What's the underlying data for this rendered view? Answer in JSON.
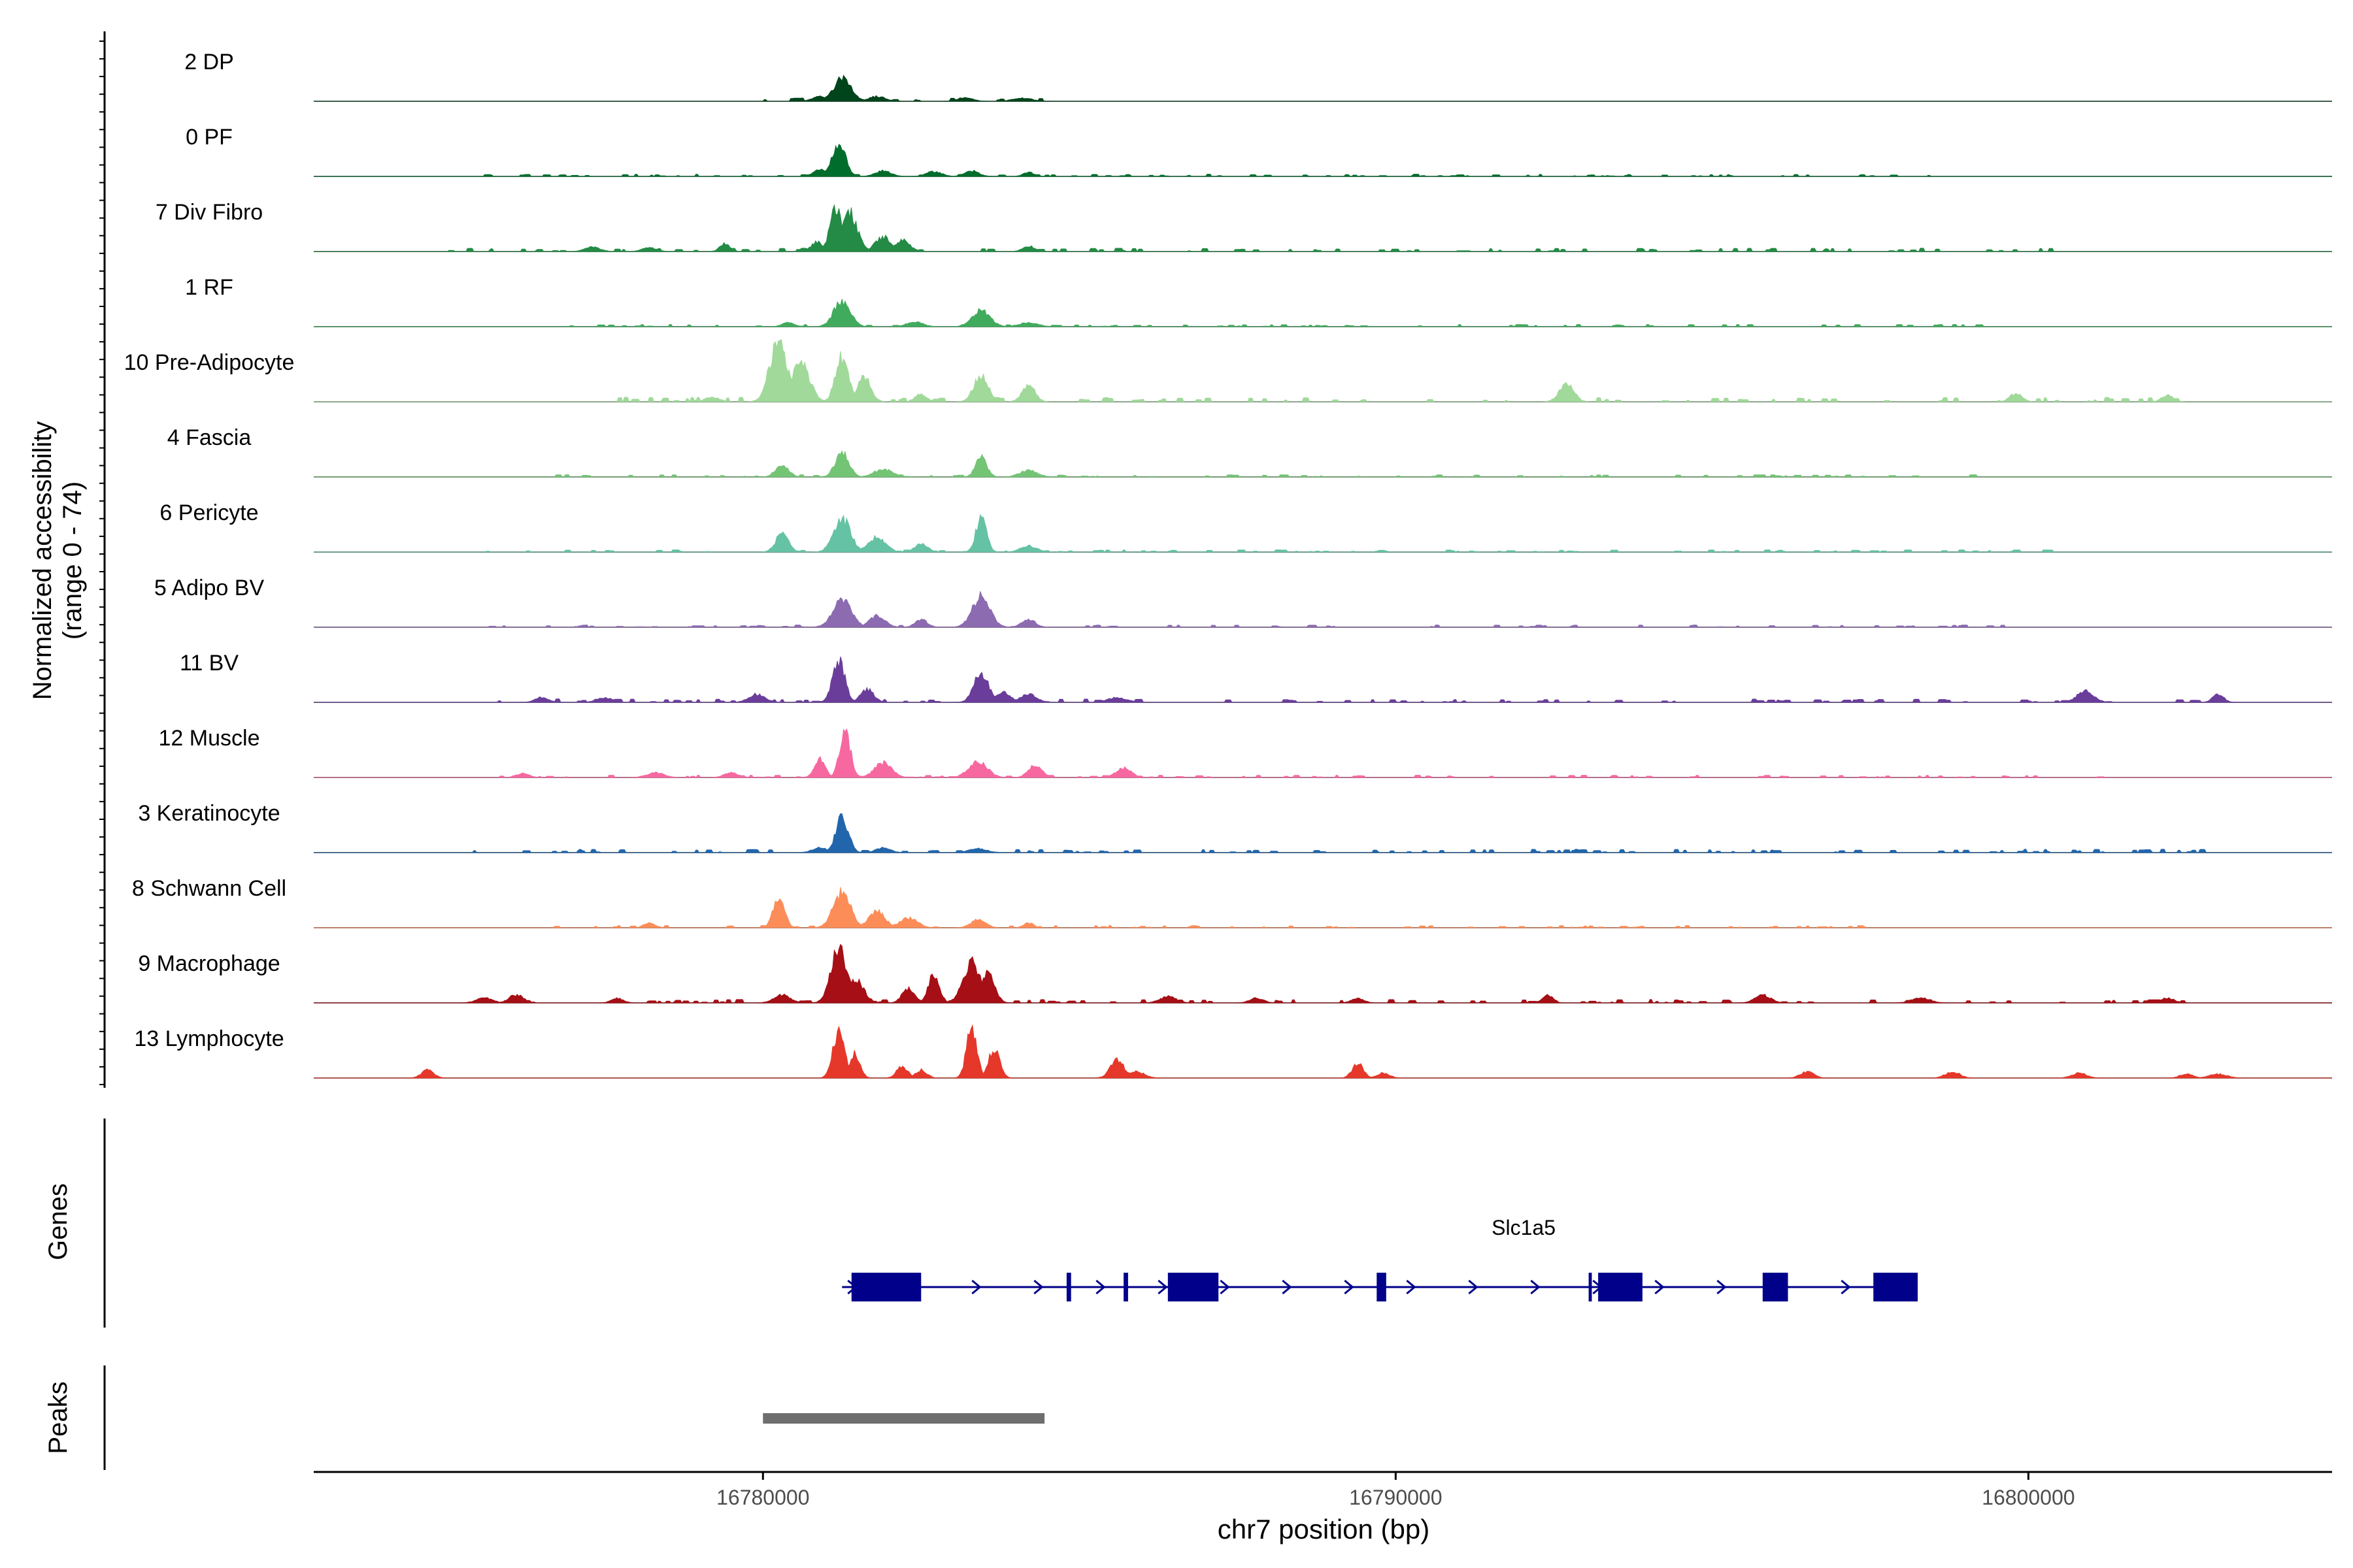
{
  "chart_data": {
    "type": "area",
    "title": "",
    "ylabel_line1": "Normalized accessibility",
    "ylabel_line2": "(range 0 - 74)",
    "xlabel": "chr7 position (bp)",
    "xlim": [
      16772900,
      16804800
    ],
    "ylim": [
      0,
      74
    ],
    "xticks": [
      16780000,
      16790000,
      16800000
    ],
    "xtick_labels": [
      "16780000",
      "16790000",
      "16800000"
    ],
    "tracks": [
      {
        "name": "2 DP",
        "color": "#00441b",
        "peaks": [
          [
            16781260,
            28
          ],
          [
            16780900,
            6
          ],
          [
            16781800,
            6
          ],
          [
            16783200,
            5
          ],
          [
            16784100,
            4
          ]
        ],
        "noise": [
          16779900,
          16784400,
          3
        ]
      },
      {
        "name": "0 PF",
        "color": "#006d2c",
        "peaks": [
          [
            16781200,
            42
          ],
          [
            16780900,
            8
          ],
          [
            16781900,
            7
          ],
          [
            16782700,
            6
          ],
          [
            16783300,
            7
          ],
          [
            16784200,
            5
          ]
        ],
        "noise": [
          16775300,
          16798600,
          2
        ]
      },
      {
        "name": "7 Div Fibro",
        "color": "#238b45",
        "peaks": [
          [
            16781150,
            55
          ],
          [
            16781350,
            50
          ],
          [
            16780850,
            12
          ],
          [
            16781900,
            18
          ],
          [
            16782200,
            14
          ],
          [
            16779400,
            10
          ],
          [
            16777300,
            6
          ],
          [
            16778200,
            5
          ],
          [
            16784200,
            7
          ]
        ],
        "noise": [
          16775000,
          16800500,
          3
        ]
      },
      {
        "name": "1 RF",
        "color": "#41ab5d",
        "peaks": [
          [
            16781250,
            32
          ],
          [
            16783450,
            20
          ],
          [
            16780400,
            5
          ],
          [
            16782400,
            6
          ],
          [
            16784200,
            5
          ]
        ],
        "noise": [
          16776000,
          16799600,
          2
        ]
      },
      {
        "name": "10 Pre-Adipocyte",
        "color": "#a1d99b",
        "peaks": [
          [
            16780250,
            75
          ],
          [
            16780600,
            48
          ],
          [
            16781250,
            55
          ],
          [
            16781600,
            30
          ],
          [
            16783450,
            32
          ],
          [
            16784200,
            22
          ],
          [
            16779200,
            6
          ],
          [
            16782500,
            10
          ],
          [
            16792700,
            22
          ],
          [
            16799800,
            10
          ],
          [
            16802200,
            8
          ]
        ],
        "noise": [
          16777600,
          16802500,
          4
        ]
      },
      {
        "name": "4 Fascia",
        "color": "#74c476",
        "peaks": [
          [
            16780300,
            16
          ],
          [
            16781250,
            30
          ],
          [
            16781900,
            10
          ],
          [
            16783450,
            24
          ],
          [
            16784200,
            8
          ]
        ],
        "noise": [
          16776500,
          16799300,
          2
        ]
      },
      {
        "name": "6 Pericyte",
        "color": "#66c2a4",
        "peaks": [
          [
            16780300,
            22
          ],
          [
            16781250,
            42
          ],
          [
            16781800,
            18
          ],
          [
            16783450,
            44
          ],
          [
            16782500,
            10
          ],
          [
            16784200,
            8
          ]
        ],
        "noise": [
          16775500,
          16800500,
          2
        ]
      },
      {
        "name": "5 Adipo BV",
        "color": "#8c6bb1",
        "peaks": [
          [
            16781250,
            34
          ],
          [
            16781800,
            14
          ],
          [
            16783450,
            38
          ],
          [
            16782500,
            10
          ],
          [
            16784200,
            10
          ]
        ],
        "noise": [
          16775600,
          16800800,
          2
        ]
      },
      {
        "name": "11 BV",
        "color": "#6a3d9a",
        "peaks": [
          [
            16781200,
            52
          ],
          [
            16781650,
            16
          ],
          [
            16783450,
            36
          ],
          [
            16783800,
            12
          ],
          [
            16784200,
            10
          ],
          [
            16779900,
            10
          ],
          [
            16776500,
            6
          ],
          [
            16777500,
            6
          ],
          [
            16785600,
            6
          ],
          [
            16800900,
            14
          ],
          [
            16803000,
            10
          ]
        ],
        "noise": [
          16775700,
          16803100,
          3
        ]
      },
      {
        "name": "12 Muscle",
        "color": "#f768a1",
        "peaks": [
          [
            16781300,
            55
          ],
          [
            16780900,
            22
          ],
          [
            16781900,
            18
          ],
          [
            16783400,
            20
          ],
          [
            16784300,
            16
          ],
          [
            16785700,
            12
          ],
          [
            16779500,
            6
          ],
          [
            16778300,
            6
          ],
          [
            16776200,
            5
          ]
        ],
        "noise": [
          16775800,
          16802400,
          2
        ]
      },
      {
        "name": "3 Keratinocyte",
        "color": "#2166ac",
        "peaks": [
          [
            16781250,
            44
          ],
          [
            16780900,
            6
          ],
          [
            16781900,
            6
          ],
          [
            16783400,
            5
          ]
        ],
        "noise": [
          16774800,
          16803000,
          3
        ]
      },
      {
        "name": "8 Schwann Cell",
        "color": "#fc8d59",
        "peaks": [
          [
            16780250,
            36
          ],
          [
            16781250,
            44
          ],
          [
            16781800,
            20
          ],
          [
            16782300,
            12
          ],
          [
            16783400,
            10
          ],
          [
            16784200,
            6
          ],
          [
            16778200,
            6
          ]
        ],
        "noise": [
          16776700,
          16797400,
          2
        ]
      },
      {
        "name": "9 Macrophage",
        "color": "#a50f15",
        "peaks": [
          [
            16781200,
            68
          ],
          [
            16781450,
            30
          ],
          [
            16782700,
            38
          ],
          [
            16782300,
            18
          ],
          [
            16783300,
            50
          ],
          [
            16783550,
            36
          ],
          [
            16780300,
            10
          ],
          [
            16776100,
            10
          ],
          [
            16775600,
            6
          ],
          [
            16777700,
            6
          ],
          [
            16786400,
            8
          ],
          [
            16787800,
            6
          ],
          [
            16789400,
            6
          ],
          [
            16792400,
            10
          ],
          [
            16795800,
            10
          ],
          [
            16798300,
            6
          ],
          [
            16802200,
            6
          ]
        ],
        "noise": [
          16775500,
          16802600,
          3
        ]
      },
      {
        "name": "13 Lymphocyte",
        "color": "#e5382a",
        "peaks": [
          [
            16781200,
            60
          ],
          [
            16781450,
            30
          ],
          [
            16783300,
            65
          ],
          [
            16783650,
            36
          ],
          [
            16782200,
            14
          ],
          [
            16782500,
            10
          ],
          [
            16785600,
            22
          ],
          [
            16785900,
            8
          ],
          [
            16789400,
            18
          ],
          [
            16789800,
            6
          ],
          [
            16774700,
            10
          ],
          [
            16796500,
            8
          ],
          [
            16798800,
            8
          ],
          [
            16800800,
            6
          ],
          [
            16802500,
            5
          ],
          [
            16803000,
            5
          ]
        ],
        "noise": [
          0,
          0,
          0
        ]
      }
    ],
    "genes_label": "Genes",
    "gene": {
      "name": "Slc1a5",
      "strand": "+",
      "start": 16781250,
      "end": 16798250,
      "exons": [
        [
          16781400,
          16782500
        ],
        [
          16784800,
          16784870
        ],
        [
          16785700,
          16785770
        ],
        [
          16786400,
          16787200
        ],
        [
          16789700,
          16789850
        ],
        [
          16793050,
          16793100
        ],
        [
          16793200,
          16793900
        ],
        [
          16795800,
          16796200
        ],
        [
          16797550,
          16798250
        ]
      ]
    },
    "peaks_label": "Peaks",
    "peak_regions": [
      [
        16780000,
        16784450
      ]
    ]
  }
}
